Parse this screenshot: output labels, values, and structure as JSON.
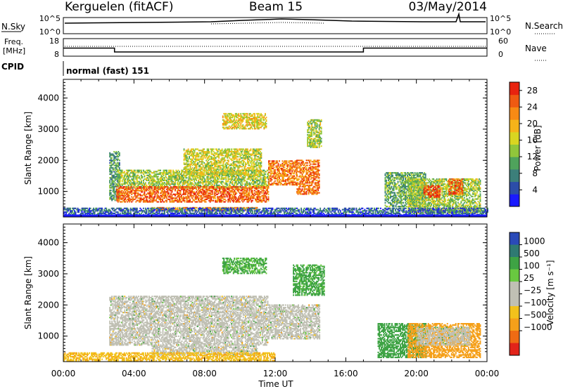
{
  "header": {
    "station": "Kerguelen (fitACF)",
    "beam": "Beam 15",
    "date": "03/May/2014"
  },
  "summary_panels": {
    "nsky": {
      "label": "N.Sky",
      "ticks": [
        "10^5",
        "10^0"
      ]
    },
    "nsearch": {
      "label": "N.Search",
      "ticks": [
        "10^5",
        "10^0"
      ]
    },
    "freq": {
      "label_line1": "Freq.",
      "label_line2": "[MHz]",
      "ticks": [
        "18",
        "8"
      ],
      "values": [
        {
          "t": 0,
          "v": 12.6
        },
        {
          "t": 2.9,
          "v": 12.6
        },
        {
          "t": 2.9,
          "v": 10.4
        },
        {
          "t": 17.0,
          "v": 10.4
        },
        {
          "t": 17.0,
          "v": 12.6
        },
        {
          "t": 24,
          "v": 12.6
        }
      ]
    },
    "nave": {
      "label": "Nave",
      "ticks": [
        "60",
        "0"
      ]
    },
    "cpid": {
      "label": "CPID",
      "value": "normal (fast) 151"
    }
  },
  "colorbars": {
    "power": {
      "label": "Power [dB]",
      "ticks": [
        "28",
        "24",
        "20",
        "16",
        "12",
        "8",
        "4"
      ],
      "colors": [
        "#1a1aff",
        "#2c4da8",
        "#3c7f7a",
        "#4fa35c",
        "#90c63b",
        "#d9d521",
        "#f6b319",
        "#f78a14",
        "#ef5a12",
        "#e8230f"
      ]
    },
    "velocity": {
      "label": "Velocity [m s⁻¹]",
      "ticks": [
        "1000",
        "500",
        "100",
        "25",
        "−25",
        "−100",
        "−500",
        "−1000"
      ],
      "colors": [
        "#2a4ab8",
        "#2f7a72",
        "#3ea344",
        "#69c940",
        "#c0c0b4",
        "#c0c0b4",
        "#f2c21c",
        "#f5a01a",
        "#ef6b14",
        "#e2241a"
      ]
    }
  },
  "chart_data": [
    {
      "type": "heatmap",
      "name": "Power",
      "ylabel": "Slant Range [km]",
      "xlabel": "Time UT",
      "xticks": [
        "00:00",
        "04:00",
        "08:00",
        "12:00",
        "16:00",
        "20:00",
        "00:00"
      ],
      "yticks": [
        "1000",
        "2000",
        "3000",
        "4000"
      ],
      "xlim_hours": [
        0,
        24
      ],
      "ylim_km": [
        180,
        4600
      ],
      "zlim_db": [
        0,
        30
      ],
      "regions": [
        {
          "t0": 2.6,
          "t1": 3.2,
          "r0": 700,
          "r1": 2300,
          "db": 10
        },
        {
          "t0": 3.0,
          "t1": 11.6,
          "r0": 1100,
          "r1": 1700,
          "db": 14
        },
        {
          "t0": 3.0,
          "t1": 11.6,
          "r0": 650,
          "r1": 1150,
          "db": 25
        },
        {
          "t0": 6.8,
          "t1": 11.2,
          "r0": 1500,
          "r1": 2350,
          "db": 16
        },
        {
          "t0": 5.0,
          "t1": 11.0,
          "r0": 380,
          "r1": 500,
          "db": 23
        },
        {
          "t0": 11.6,
          "t1": 13.2,
          "r0": 1200,
          "r1": 2000,
          "db": 23
        },
        {
          "t0": 13.2,
          "t1": 14.5,
          "r0": 900,
          "r1": 2000,
          "db": 24
        },
        {
          "t0": 13.8,
          "t1": 14.6,
          "r0": 2400,
          "r1": 3300,
          "db": 14
        },
        {
          "t0": 9.0,
          "t1": 11.5,
          "r0": 3000,
          "r1": 3500,
          "db": 17
        },
        {
          "t0": 18.2,
          "t1": 20.5,
          "r0": 500,
          "r1": 1600,
          "db": 11
        },
        {
          "t0": 19.5,
          "t1": 23.6,
          "r0": 300,
          "r1": 1400,
          "db": 14
        },
        {
          "t0": 20.4,
          "t1": 21.3,
          "r0": 800,
          "r1": 1200,
          "db": 27
        },
        {
          "t0": 21.8,
          "t1": 22.6,
          "r0": 900,
          "r1": 1400,
          "db": 25
        },
        {
          "t0": 0.0,
          "t1": 24.0,
          "r0": 200,
          "r1": 480,
          "db": 6
        }
      ]
    },
    {
      "type": "heatmap",
      "name": "Velocity",
      "ylabel": "Slant Range [km]",
      "xlabel": "Time UT",
      "xticks": [
        "00:00",
        "04:00",
        "08:00",
        "12:00",
        "16:00",
        "20:00",
        "00:00"
      ],
      "yticks": [
        "1000",
        "2000",
        "3000",
        "4000"
      ],
      "xlim_hours": [
        0,
        24
      ],
      "ylim_km": [
        180,
        4600
      ],
      "zlim_ms": [
        -1000,
        1000
      ],
      "regions": [
        {
          "t0": 2.6,
          "t1": 11.6,
          "r0": 700,
          "r1": 2300,
          "v": 0
        },
        {
          "t0": 5.0,
          "t1": 11.0,
          "r0": 380,
          "r1": 700,
          "v": 0
        },
        {
          "t0": 11.6,
          "t1": 14.5,
          "r0": 900,
          "r1": 2000,
          "v": 0
        },
        {
          "t0": 13.0,
          "t1": 14.8,
          "r0": 2300,
          "r1": 3300,
          "v": 150
        },
        {
          "t0": 9.0,
          "t1": 11.5,
          "r0": 3000,
          "r1": 3500,
          "v": 120
        },
        {
          "t0": 17.8,
          "t1": 20.5,
          "r0": 300,
          "r1": 1400,
          "v": 200
        },
        {
          "t0": 19.5,
          "t1": 23.6,
          "r0": 300,
          "r1": 1400,
          "v": -200
        },
        {
          "t0": 20.0,
          "t1": 23.0,
          "r0": 700,
          "r1": 1300,
          "v": 0
        },
        {
          "t0": 0.0,
          "t1": 12.0,
          "r0": 200,
          "r1": 480,
          "v": -80
        }
      ]
    }
  ]
}
